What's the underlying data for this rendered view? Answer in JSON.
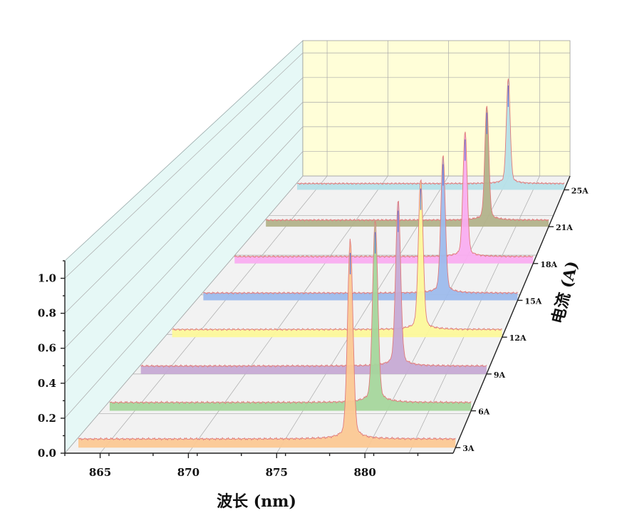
{
  "chart_data": {
    "type": "waterfall-3d-spectrum",
    "x_axis": {
      "title": "波长 (nm)",
      "range": [
        863,
        885
      ],
      "ticks": [
        865,
        870,
        875,
        880
      ],
      "tick_labels": [
        "865",
        "870",
        "875",
        "880"
      ]
    },
    "y_axis": {
      "title": "",
      "range": [
        0,
        1.1
      ],
      "ticks": [
        0.0,
        0.2,
        0.4,
        0.6,
        0.8,
        1.0
      ],
      "tick_labels": [
        "0.0",
        "0.2",
        "0.4",
        "0.6",
        "0.8",
        "1.0"
      ]
    },
    "z_axis": {
      "title": "电流 (A)",
      "categories": [
        "3A",
        "6A",
        "9A",
        "12A",
        "15A",
        "18A",
        "21A",
        "25A"
      ]
    },
    "series": [
      {
        "name": "3A",
        "peak_x": 879.0,
        "peak_y": 1.07,
        "fwhm": 0.35,
        "baseline": 0.05,
        "color": "#fbc894"
      },
      {
        "name": "6A",
        "peak_x": 879.3,
        "peak_y": 1.02,
        "fwhm": 0.35,
        "baseline": 0.05,
        "color": "#a5d69c"
      },
      {
        "name": "9A",
        "peak_x": 879.5,
        "peak_y": 0.97,
        "fwhm": 0.35,
        "baseline": 0.05,
        "color": "#c6aad4"
      },
      {
        "name": "12A",
        "peak_x": 879.7,
        "peak_y": 0.92,
        "fwhm": 0.35,
        "baseline": 0.05,
        "color": "#fcf89a"
      },
      {
        "name": "15A",
        "peak_x": 879.9,
        "peak_y": 0.88,
        "fwhm": 0.35,
        "baseline": 0.05,
        "color": "#9dbbec"
      },
      {
        "name": "18A",
        "peak_x": 880.1,
        "peak_y": 0.84,
        "fwhm": 0.35,
        "baseline": 0.05,
        "color": "#f9adf0"
      },
      {
        "name": "21A",
        "peak_x": 880.3,
        "peak_y": 0.81,
        "fwhm": 0.35,
        "baseline": 0.05,
        "color": "#b2b28a"
      },
      {
        "name": "25A",
        "peak_x": 880.5,
        "peak_y": 0.78,
        "fwhm": 0.35,
        "baseline": 0.05,
        "color": "#b6e0e8"
      }
    ],
    "grid": true,
    "walls": {
      "back": "#fffed8",
      "side": "#e6f8f6",
      "floor": "#f2f2f2"
    }
  }
}
